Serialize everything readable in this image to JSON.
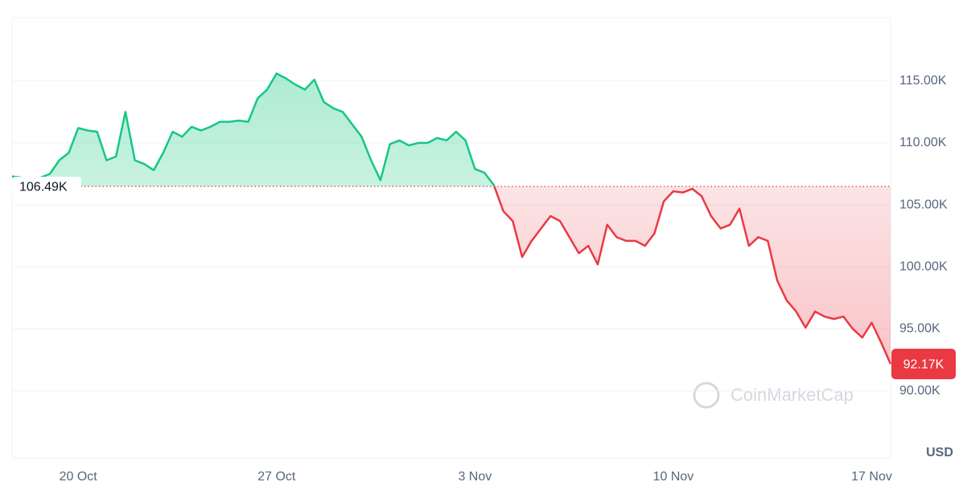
{
  "chart_data": {
    "type": "line",
    "categories": [
      null,
      null,
      null,
      null,
      null,
      null,
      null,
      "20 Oct",
      null,
      null,
      null,
      null,
      null,
      null,
      null,
      null,
      null,
      null,
      null,
      null,
      null,
      null,
      null,
      null,
      null,
      null,
      null,
      null,
      "27 Oct",
      null,
      null,
      null,
      null,
      null,
      null,
      null,
      null,
      null,
      null,
      null,
      null,
      null,
      null,
      null,
      null,
      null,
      null,
      null,
      null,
      "3 Nov",
      null,
      null,
      null,
      null,
      null,
      null,
      null,
      null,
      null,
      null,
      null,
      null,
      null,
      null,
      null,
      null,
      null,
      null,
      null,
      null,
      "10 Nov",
      null,
      null,
      null,
      null,
      null,
      null,
      null,
      null,
      null,
      null,
      null,
      null,
      null,
      null,
      null,
      null,
      null,
      null,
      null,
      null,
      "17 Nov",
      null,
      null
    ],
    "values": [
      107300,
      107200,
      107000,
      107200,
      107500,
      108600,
      109200,
      111200,
      111000,
      110900,
      108600,
      108900,
      112500,
      108600,
      108300,
      107800,
      109200,
      110900,
      110500,
      111300,
      111000,
      111300,
      111700,
      111700,
      111800,
      111700,
      113600,
      114300,
      115600,
      115200,
      114700,
      114300,
      115100,
      113300,
      112800,
      112500,
      111500,
      110500,
      108600,
      107000,
      109900,
      110200,
      109800,
      110000,
      110000,
      110400,
      110200,
      110900,
      110200,
      107900,
      107600,
      106600,
      104500,
      103700,
      100800,
      102100,
      103100,
      104100,
      103700,
      102400,
      101100,
      101700,
      100200,
      103400,
      102400,
      102100,
      102100,
      101700,
      102700,
      105300,
      106100,
      106000,
      106300,
      105700,
      104100,
      103100,
      103400,
      104700,
      101700,
      102400,
      102100,
      98900,
      97300,
      96400,
      95100,
      96400,
      96000,
      95800,
      96000,
      95000,
      94300,
      95500,
      93900,
      92170
    ],
    "value_labels": [
      null,
      null,
      null,
      null,
      null,
      null,
      null,
      null,
      null,
      null,
      null,
      null,
      null,
      null,
      null,
      null,
      null,
      null,
      null,
      null,
      null,
      null,
      null,
      null,
      null,
      null,
      null,
      null,
      null,
      null,
      null,
      null,
      null,
      null,
      null,
      null,
      null,
      null,
      null,
      null,
      null,
      null,
      null,
      null,
      null,
      null,
      null,
      null,
      null,
      null,
      null,
      null,
      null,
      null,
      null,
      null,
      null,
      null,
      null,
      null,
      null,
      null,
      null,
      null,
      null,
      null,
      null,
      null,
      null,
      null,
      null,
      null,
      null,
      null,
      null,
      null,
      null,
      null,
      null,
      null,
      null,
      null,
      null,
      null,
      null,
      null,
      null,
      null,
      null,
      null,
      null,
      null,
      null,
      "92.17K"
    ],
    "reference": {
      "value": 106490,
      "label": "106.49K"
    },
    "colors": {
      "up": "#16c784",
      "down": "#ea3943"
    },
    "ylim": [
      84600,
      120100
    ],
    "yticks": [
      {
        "value": 90000,
        "label": "90.00K"
      },
      {
        "value": 95000,
        "label": "95.00K"
      },
      {
        "value": 100000,
        "label": "100.00K"
      },
      {
        "value": 105000,
        "label": "105.00K"
      },
      {
        "value": 110000,
        "label": "110.00K"
      },
      {
        "value": 115000,
        "label": "115.00K"
      }
    ],
    "grid": true,
    "currency": "USD",
    "watermark": "CoinMarketCap"
  }
}
